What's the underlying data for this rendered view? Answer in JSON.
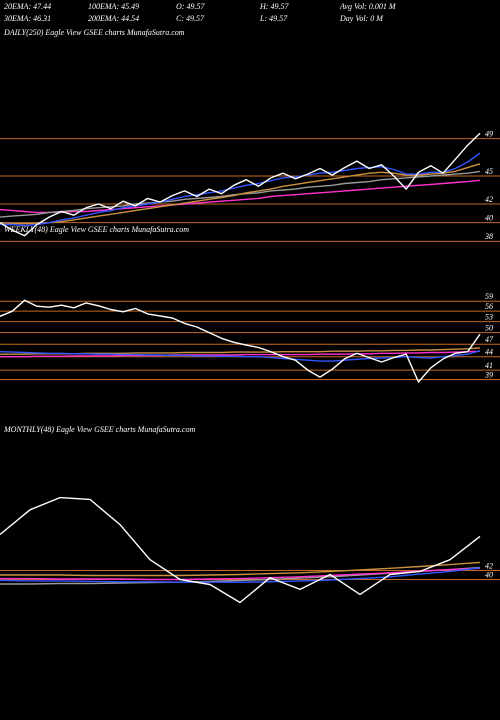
{
  "header": [
    [
      "20EMA: 47.44",
      "100EMA: 45.49",
      "O: 49.57",
      "H: 49.57",
      "Avg Vol: 0.001 M"
    ],
    [
      "30EMA: 46.31",
      "200EMA: 44.54",
      "C: 49.57",
      "L: 49.57",
      "Day Vol: 0  M"
    ]
  ],
  "chart_data": [
    {
      "type": "line",
      "title": "DAILY(250) Eagle  View  GSEE charts MunafaSutra.com",
      "ylim": [
        36,
        51
      ],
      "yticks": [
        49,
        45,
        42,
        40,
        38
      ],
      "grid": true,
      "grid_color": "#c06a28",
      "series": [
        {
          "color": "#ff33cc",
          "values": [
            41.4,
            41.3,
            41.2,
            41.1,
            41.1,
            41.1,
            41.2,
            41.2,
            41.3,
            41.4,
            41.5,
            41.6,
            41.7,
            41.8,
            41.9,
            42.0,
            42.1,
            42.2,
            42.3,
            42.4,
            42.5,
            42.6,
            42.8,
            42.9,
            43.0,
            43.1,
            43.2,
            43.3,
            43.4,
            43.5,
            43.6,
            43.7,
            43.8,
            43.9,
            44.0,
            44.1,
            44.2,
            44.3,
            44.4,
            44.54
          ]
        },
        {
          "color": "#9a9a9a",
          "values": [
            40.6,
            40.7,
            40.8,
            40.9,
            41.1,
            41.2,
            41.3,
            41.5,
            41.6,
            41.7,
            41.8,
            42.0,
            42.1,
            42.2,
            42.3,
            42.5,
            42.6,
            42.7,
            42.8,
            43.0,
            43.1,
            43.2,
            43.4,
            43.5,
            43.6,
            43.8,
            43.9,
            44.0,
            44.2,
            44.3,
            44.4,
            44.6,
            44.7,
            44.8,
            44.9,
            45.0,
            45.1,
            45.2,
            45.3,
            45.49
          ]
        },
        {
          "color": "#c89040",
          "values": [
            40.0,
            39.9,
            39.9,
            39.9,
            40.0,
            40.1,
            40.3,
            40.5,
            40.7,
            40.9,
            41.1,
            41.3,
            41.5,
            41.7,
            41.9,
            42.1,
            42.3,
            42.5,
            42.7,
            42.9,
            43.2,
            43.4,
            43.6,
            43.9,
            44.1,
            44.3,
            44.5,
            44.7,
            44.9,
            45.1,
            45.3,
            45.4,
            45.3,
            45.1,
            45.1,
            45.2,
            45.3,
            45.5,
            45.9,
            46.31
          ]
        },
        {
          "color": "#3355ff",
          "values": [
            39.8,
            39.8,
            39.7,
            39.8,
            40.0,
            40.3,
            40.5,
            40.8,
            41.1,
            41.3,
            41.6,
            41.8,
            42.0,
            42.2,
            42.5,
            42.8,
            43.0,
            43.2,
            43.4,
            43.7,
            44.0,
            44.2,
            44.5,
            44.8,
            44.9,
            45.1,
            45.3,
            45.4,
            45.6,
            45.8,
            45.9,
            46.0,
            45.7,
            45.2,
            45.2,
            45.4,
            45.4,
            45.8,
            46.5,
            47.44
          ]
        },
        {
          "color": "#ffffff",
          "values": [
            40.0,
            39.2,
            38.6,
            39.8,
            40.6,
            41.2,
            40.8,
            41.6,
            42.0,
            41.5,
            42.3,
            41.8,
            42.6,
            42.2,
            42.9,
            43.4,
            42.8,
            43.6,
            43.1,
            44.0,
            44.6,
            43.9,
            44.8,
            45.3,
            44.7,
            45.2,
            45.8,
            45.1,
            45.9,
            46.6,
            45.8,
            46.2,
            45.0,
            43.6,
            45.4,
            46.1,
            45.3,
            46.8,
            48.3,
            49.57
          ]
        }
      ]
    },
    {
      "type": "line",
      "title": "WEEKLY(48) Eagle  View  GSEE charts MunafaSutra.com",
      "ylim": [
        35,
        61
      ],
      "log": true,
      "yticks": [
        59,
        56,
        53,
        50,
        47,
        44,
        41,
        39
      ],
      "grid": true,
      "grid_color": "#c06a28",
      "series": [
        {
          "color": "#ff33cc",
          "values": [
            44.0,
            44.0,
            44.0,
            44.1,
            44.1,
            44.1,
            44.2,
            44.2,
            44.2,
            44.2,
            44.3,
            44.3,
            44.3,
            44.3,
            44.4,
            44.4,
            44.4,
            44.4,
            44.4,
            44.4,
            44.5,
            44.5,
            44.5,
            44.5,
            44.5,
            44.5,
            44.6,
            44.6,
            44.6,
            44.7,
            44.7,
            44.8,
            44.8,
            44.9,
            44.9,
            45.0,
            45.0,
            45.1,
            45.2,
            45.3
          ]
        },
        {
          "color": "#c89040",
          "values": [
            44.6,
            44.6,
            44.6,
            44.7,
            44.7,
            44.7,
            44.7,
            44.8,
            44.8,
            44.8,
            44.8,
            44.9,
            44.9,
            44.9,
            44.9,
            45.0,
            45.0,
            45.0,
            45.0,
            45.1,
            45.1,
            45.1,
            45.1,
            45.2,
            45.2,
            45.2,
            45.2,
            45.3,
            45.3,
            45.3,
            45.4,
            45.4,
            45.5,
            45.5,
            45.6,
            45.6,
            45.7,
            45.8,
            45.9,
            46.1
          ]
        },
        {
          "color": "#3355ff",
          "values": [
            45.2,
            45.1,
            45.0,
            44.9,
            44.8,
            44.8,
            44.7,
            44.7,
            44.6,
            44.6,
            44.5,
            44.5,
            44.4,
            44.4,
            44.3,
            44.3,
            44.2,
            44.2,
            44.1,
            44.1,
            44.0,
            44.0,
            43.8,
            43.6,
            43.4,
            43.2,
            43.0,
            43.0,
            43.2,
            43.4,
            43.6,
            43.7,
            43.8,
            44.0,
            43.8,
            43.7,
            44.0,
            44.3,
            44.6,
            45.4
          ]
        },
        {
          "color": "#ffffff",
          "values": [
            54.5,
            56.0,
            59.3,
            57.5,
            57.2,
            57.8,
            57.0,
            58.5,
            57.6,
            56.5,
            55.8,
            56.8,
            55.2,
            54.6,
            54.0,
            52.5,
            51.5,
            50.0,
            48.5,
            47.5,
            46.8,
            46.2,
            45.2,
            44.0,
            43.2,
            41.0,
            39.5,
            41.2,
            43.5,
            44.8,
            43.8,
            42.8,
            43.8,
            44.6,
            38.5,
            41.5,
            43.5,
            44.8,
            45.2,
            49.57
          ]
        }
      ]
    },
    {
      "type": "line",
      "title": "MONTHLY(48) Eagle  View  GSEE charts MunafaSutra.com",
      "ylim": [
        31,
        71
      ],
      "yticks": [
        42,
        40
      ],
      "grid": true,
      "grid_color": "#c06a28",
      "series": [
        {
          "color": "#9a9a9a",
          "values": [
            39.0,
            39.0,
            39.1,
            39.1,
            39.2,
            39.3,
            39.4,
            39.6,
            39.8,
            40.0,
            40.3,
            40.6,
            41.0,
            41.4,
            41.8,
            42.2,
            42.7
          ]
        },
        {
          "color": "#c89040",
          "values": [
            41.0,
            41.0,
            41.0,
            40.9,
            40.9,
            40.9,
            40.9,
            41.0,
            41.1,
            41.3,
            41.5,
            41.8,
            42.1,
            42.5,
            42.9,
            43.3,
            43.8
          ]
        },
        {
          "color": "#ff33cc",
          "values": [
            40.2,
            40.2,
            40.1,
            40.1,
            40.1,
            40.0,
            40.0,
            40.1,
            40.2,
            40.4,
            40.6,
            40.9,
            41.2,
            41.5,
            41.9,
            42.2,
            42.5
          ]
        },
        {
          "color": "#3355ff",
          "values": [
            39.8,
            39.7,
            39.7,
            39.6,
            39.5,
            39.5,
            39.4,
            39.4,
            39.4,
            39.5,
            39.7,
            39.9,
            40.2,
            40.6,
            41.2,
            41.8,
            42.6
          ]
        },
        {
          "color": "#ffffff",
          "values": [
            50,
            55.5,
            58.2,
            57.8,
            52.2,
            44.4,
            40,
            38.9,
            34.9,
            40.4,
            37.8,
            41.1,
            36.7,
            41.1,
            41.8,
            44.4,
            49.57
          ]
        }
      ]
    }
  ]
}
